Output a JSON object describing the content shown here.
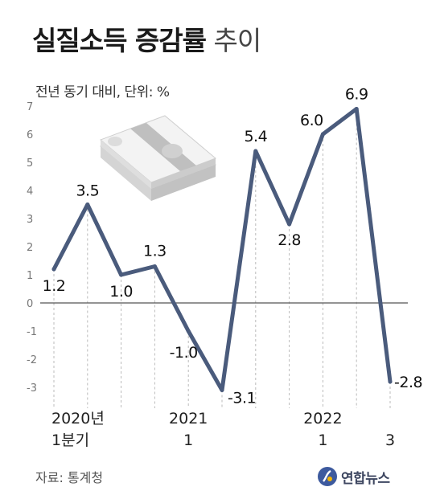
{
  "title": {
    "bold": "실질소득 증감률",
    "light": "추이"
  },
  "subtitle": "전년 동기 대비, 단위: %",
  "source": "자료: 통계청",
  "logo": {
    "text": "연합뉴스"
  },
  "colors": {
    "line": "#4a5b7c",
    "zero_line": "#555555",
    "grid": "#bbbbbb"
  },
  "chart_data": {
    "type": "line",
    "title": "실질소득 증감률 추이",
    "ylabel": "전년 동기 대비, 단위: %",
    "ylim": [
      -3,
      7
    ],
    "yticks": [
      7,
      6,
      5,
      4,
      3,
      2,
      1,
      0,
      -1,
      -2,
      -3
    ],
    "series": [
      {
        "values": [
          1.2,
          3.5,
          1.0,
          1.3,
          -1.0,
          -3.1,
          5.4,
          2.8,
          6.0,
          6.9,
          -2.8
        ],
        "labels": [
          "1.2",
          "3.5",
          "1.0",
          "1.3",
          "-1.0",
          "-3.1",
          "5.4",
          "2.8",
          "6.0",
          "6.9",
          "-2.8"
        ]
      }
    ],
    "x_labels": [
      {
        "index": 0,
        "lines": [
          "2020년",
          "1분기"
        ]
      },
      {
        "index": 4,
        "lines": [
          "2021",
          "1"
        ]
      },
      {
        "index": 8,
        "lines": [
          "2022",
          "1"
        ]
      },
      {
        "index": 10,
        "lines": [
          "",
          "3"
        ]
      }
    ],
    "grid": false
  }
}
